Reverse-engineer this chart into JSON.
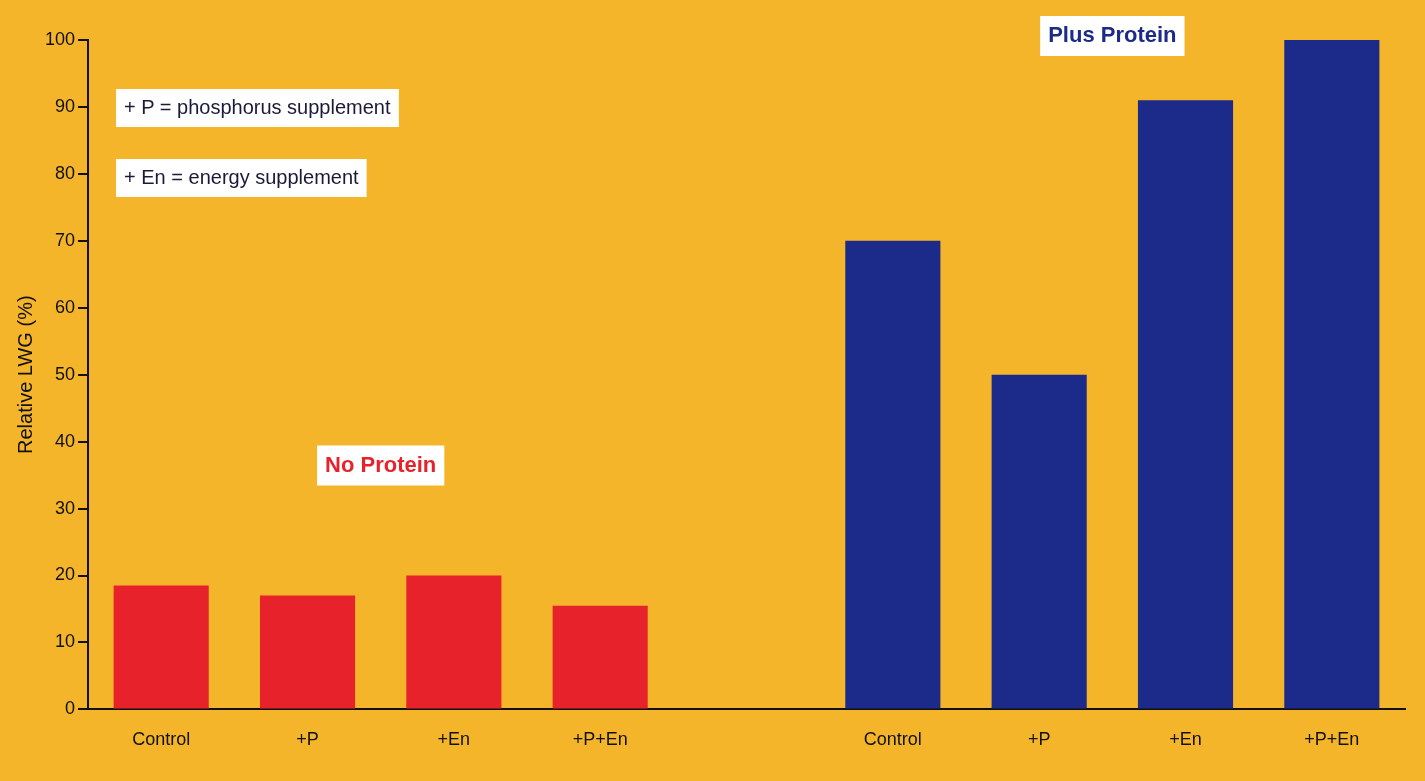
{
  "chart_data": {
    "type": "bar",
    "ylabel": "Relative LWG (%)",
    "categories": [
      "Control",
      "+P",
      "+En",
      "+P+En",
      null,
      "Control",
      "+P",
      "+En",
      "+P+En"
    ],
    "series": [
      {
        "name": "No Protein",
        "color": "#e8222b",
        "values": [
          18.5,
          17,
          20,
          15.5,
          null,
          null,
          null,
          null,
          null
        ]
      },
      {
        "name": "Plus Protein",
        "color": "#1c2a8a",
        "values": [
          null,
          null,
          null,
          null,
          null,
          70,
          50,
          91,
          100
        ]
      }
    ],
    "ylim": [
      0,
      100
    ],
    "yticks": [
      0,
      10,
      20,
      30,
      40,
      50,
      60,
      70,
      80,
      90,
      100
    ],
    "grid": false,
    "legend": false,
    "annotations": [
      "+ P = phosphorus supplement",
      "+ En = energy supplement"
    ]
  }
}
